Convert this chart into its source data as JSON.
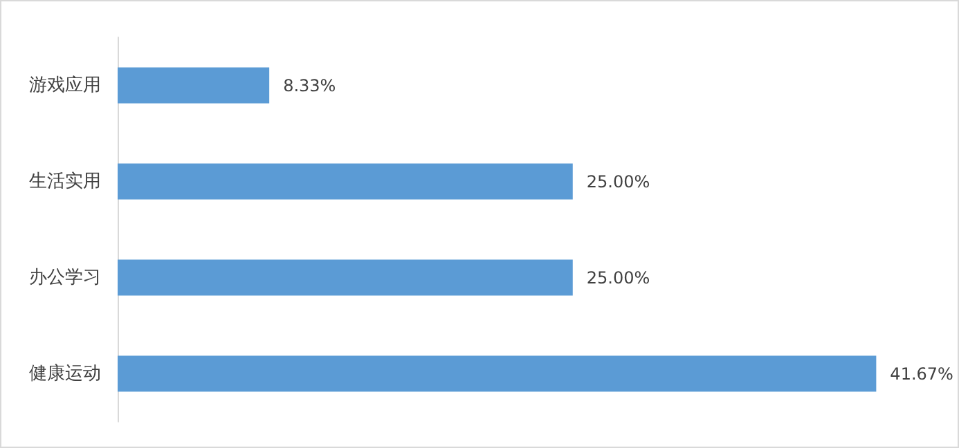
{
  "chart_data": {
    "type": "bar",
    "orientation": "horizontal",
    "categories": [
      "游戏应用",
      "生活实用",
      "办公学习",
      "健康运动"
    ],
    "values": [
      8.33,
      25.0,
      25.0,
      41.67
    ],
    "value_labels": [
      "8.33%",
      "25.00%",
      "25.00%",
      "41.67%"
    ],
    "color": "#5b9bd5"
  }
}
